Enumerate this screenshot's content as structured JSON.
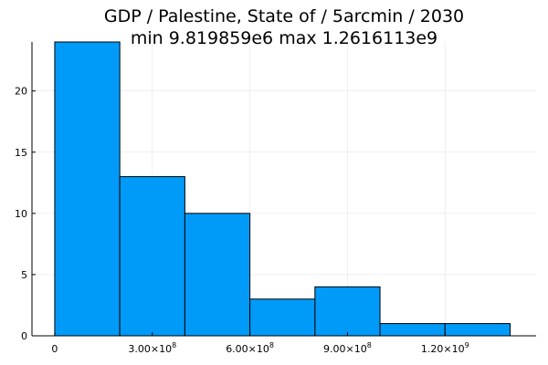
{
  "chart_data": {
    "type": "bar",
    "title_lines": [
      "GDP / Palestine, State of / 5arcmin / 2030",
      "min 9.819859e6  max 1.2616113e9"
    ],
    "xlabel": "",
    "ylabel": "",
    "bar_color": "#009af9",
    "grid": true,
    "legend": "none",
    "xlim": [
      -70000000,
      1480000000
    ],
    "ylim": [
      0,
      24
    ],
    "bins": [
      {
        "x0": 0,
        "x1": 200000000,
        "count": 24
      },
      {
        "x0": 200000000,
        "x1": 400000000,
        "count": 13
      },
      {
        "x0": 400000000,
        "x1": 600000000,
        "count": 10
      },
      {
        "x0": 600000000,
        "x1": 800000000,
        "count": 3
      },
      {
        "x0": 800000000,
        "x1": 1000000000,
        "count": 4
      },
      {
        "x0": 1000000000,
        "x1": 1200000000,
        "count": 1
      },
      {
        "x0": 1200000000,
        "x1": 1400000000,
        "count": 1
      }
    ],
    "x_ticks": [
      {
        "value": 0,
        "mantissa": "0",
        "exponent": ""
      },
      {
        "value": 300000000,
        "mantissa": "3.00×10",
        "exponent": "8"
      },
      {
        "value": 600000000,
        "mantissa": "6.00×10",
        "exponent": "8"
      },
      {
        "value": 900000000,
        "mantissa": "9.00×10",
        "exponent": "8"
      },
      {
        "value": 1200000000,
        "mantissa": "1.20×10",
        "exponent": "9"
      }
    ],
    "y_ticks": [
      {
        "value": 0,
        "label": "0"
      },
      {
        "value": 5,
        "label": "5"
      },
      {
        "value": 10,
        "label": "10"
      },
      {
        "value": 15,
        "label": "15"
      },
      {
        "value": 20,
        "label": "20"
      }
    ]
  }
}
